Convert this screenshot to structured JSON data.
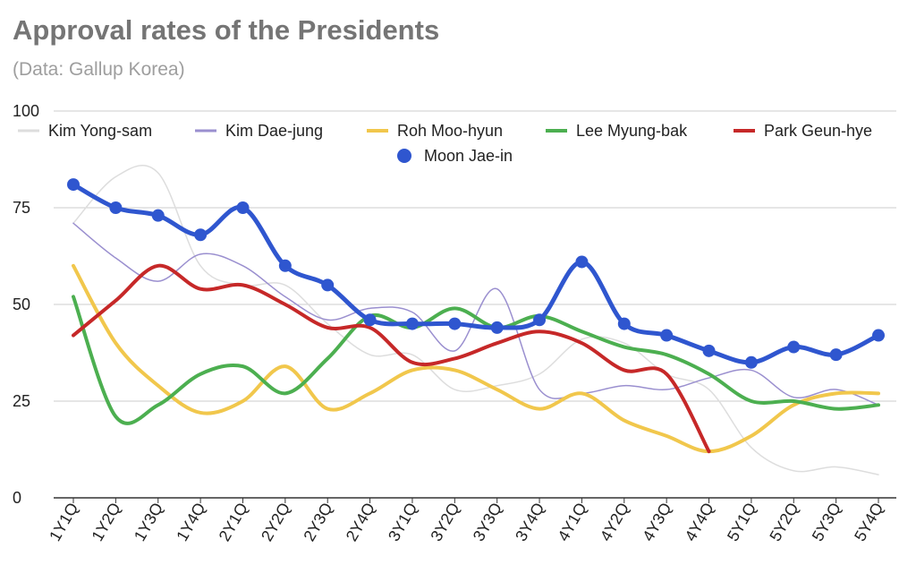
{
  "chart_data": {
    "type": "line",
    "title": "Approval rates of the Presidents",
    "subtitle": "(Data: Gallup Korea)",
    "ylim": [
      0,
      100
    ],
    "yticks": [
      0,
      25,
      50,
      75,
      100
    ],
    "categories": [
      "1Y1Q",
      "1Y2Q",
      "1Y3Q",
      "1Y4Q",
      "2Y1Q",
      "2Y2Q",
      "2Y3Q",
      "2Y4Q",
      "3Y1Q",
      "3Y2Q",
      "3Y3Q",
      "3Y4Q",
      "4Y1Q",
      "4Y2Q",
      "4Y3Q",
      "4Y4Q",
      "5Y1Q",
      "5Y2Q",
      "5Y3Q",
      "5Y4Q"
    ],
    "legend_position": "top",
    "grid": true,
    "series": [
      {
        "name": "Kim Yong-sam",
        "color": "#dddddd",
        "width": 1.5,
        "markers": false,
        "values": [
          71,
          83,
          84,
          60,
          55,
          55,
          45,
          37,
          37,
          28,
          29,
          32,
          41,
          40,
          32,
          28,
          13,
          7,
          8,
          6
        ]
      },
      {
        "name": "Kim Dae-jung",
        "color": "#9a8fcf",
        "width": 1.5,
        "markers": false,
        "values": [
          71,
          62,
          56,
          63,
          60,
          52,
          46,
          49,
          48,
          38,
          54,
          28,
          27,
          29,
          28,
          31,
          33,
          26,
          28,
          24
        ]
      },
      {
        "name": "Roh Moo-hyun",
        "color": "#f1c74c",
        "width": 4,
        "markers": false,
        "values": [
          60,
          40,
          29,
          22,
          25,
          34,
          23,
          27,
          33,
          33,
          28,
          23,
          27,
          20,
          16,
          12,
          16,
          24,
          27,
          27
        ]
      },
      {
        "name": "Lee Myung-bak",
        "color": "#4caf50",
        "width": 4,
        "markers": false,
        "values": [
          52,
          21,
          24,
          32,
          34,
          27,
          36,
          47,
          44,
          49,
          44,
          47,
          43,
          39,
          37,
          32,
          25,
          25,
          23,
          24
        ]
      },
      {
        "name": "Park Geun-hye",
        "color": "#c62828",
        "width": 4,
        "markers": false,
        "values": [
          42,
          51,
          60,
          54,
          55,
          50,
          44,
          44,
          35,
          36,
          40,
          43,
          40,
          33,
          32,
          12,
          null,
          null,
          null,
          null
        ]
      },
      {
        "name": "Moon Jae-in",
        "color": "#2f56cf",
        "width": 5,
        "markers": true,
        "values": [
          81,
          75,
          73,
          68,
          75,
          60,
          55,
          46,
          45,
          45,
          44,
          46,
          61,
          45,
          42,
          38,
          35,
          39,
          37,
          42
        ]
      }
    ]
  }
}
